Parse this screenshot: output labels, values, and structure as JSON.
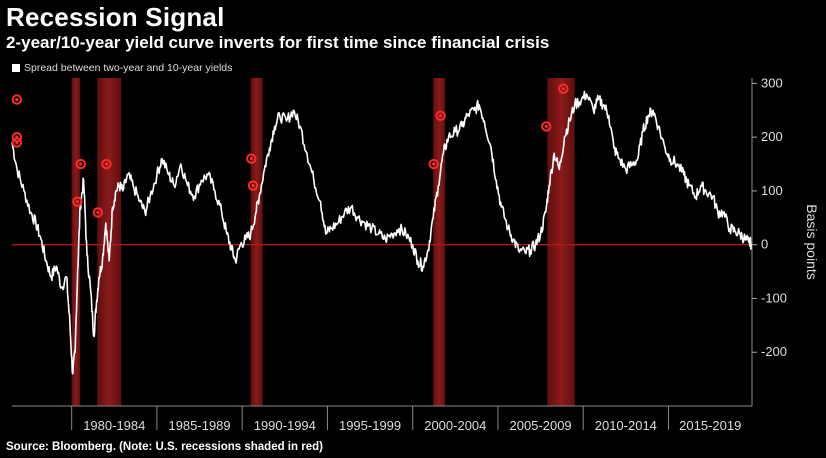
{
  "header": {
    "title": "Recession Signal",
    "subtitle": "2-year/10-year yield curve inverts for first time since financial crisis",
    "legend_label": "Spread between two-year and 10-year yields"
  },
  "footer": {
    "source": "Source: Bloomberg. (Note: U.S. recessions shaded in red)"
  },
  "colors": {
    "background": "#000000",
    "line": "#ffffff",
    "recession": "#8b1a1a",
    "zero_line": "#b01818",
    "marker": "#ff2a2a"
  },
  "chart_data": {
    "type": "line",
    "title": "Recession Signal",
    "subtitle": "2-year/10-year yield curve inverts for first time since financial crisis",
    "series_name": "Spread between two-year and 10-year yields",
    "xlabel": "",
    "ylabel": "Basis points",
    "y_axis_side": "right",
    "xlim": [
      1976.5,
      2019.9
    ],
    "ylim": [
      -300,
      310
    ],
    "yticks": [
      300,
      200,
      100,
      0,
      -100,
      -200
    ],
    "ytick_labels": [
      "300",
      "200",
      "100",
      "0",
      "-100",
      "-200"
    ],
    "x_categories": [
      "1980-1984",
      "1985-1989",
      "1990-1994",
      "1995-1999",
      "2000-2004",
      "2005-2009",
      "2010-2014",
      "2015-2019"
    ],
    "x_category_ranges": [
      [
        1980,
        1985
      ],
      [
        1985,
        1990
      ],
      [
        1990,
        1995
      ],
      [
        1995,
        2000
      ],
      [
        2000,
        2005
      ],
      [
        2005,
        2010
      ],
      [
        2010,
        2015
      ],
      [
        2015,
        2020
      ]
    ],
    "recessions": [
      [
        1980.0,
        1980.5
      ],
      [
        1981.5,
        1982.9
      ],
      [
        1990.5,
        1991.2
      ],
      [
        2001.2,
        2001.9
      ],
      [
        2007.9,
        2009.5
      ]
    ],
    "points": [
      [
        1976.5,
        190
      ],
      [
        1976.8,
        140
      ],
      [
        1977.2,
        100
      ],
      [
        1977.6,
        60
      ],
      [
        1977.9,
        40
      ],
      [
        1978.2,
        10
      ],
      [
        1978.5,
        -30
      ],
      [
        1978.8,
        -60
      ],
      [
        1979.1,
        -40
      ],
      [
        1979.4,
        -80
      ],
      [
        1979.7,
        -60
      ],
      [
        1979.9,
        -150
      ],
      [
        1980.05,
        -240
      ],
      [
        1980.2,
        -200
      ],
      [
        1980.35,
        -50
      ],
      [
        1980.5,
        70
      ],
      [
        1980.7,
        120
      ],
      [
        1980.9,
        -20
      ],
      [
        1981.1,
        -80
      ],
      [
        1981.3,
        -170
      ],
      [
        1981.45,
        -110
      ],
      [
        1981.6,
        -60
      ],
      [
        1981.8,
        -30
      ],
      [
        1982.0,
        40
      ],
      [
        1982.2,
        -30
      ],
      [
        1982.4,
        70
      ],
      [
        1982.6,
        100
      ],
      [
        1982.8,
        110
      ],
      [
        1983.0,
        100
      ],
      [
        1983.3,
        130
      ],
      [
        1983.6,
        110
      ],
      [
        1984.0,
        80
      ],
      [
        1984.3,
        60
      ],
      [
        1984.6,
        90
      ],
      [
        1985.0,
        130
      ],
      [
        1985.3,
        160
      ],
      [
        1985.7,
        130
      ],
      [
        1986.0,
        110
      ],
      [
        1986.4,
        150
      ],
      [
        1986.8,
        110
      ],
      [
        1987.2,
        90
      ],
      [
        1987.6,
        120
      ],
      [
        1988.0,
        130
      ],
      [
        1988.4,
        100
      ],
      [
        1988.8,
        60
      ],
      [
        1989.1,
        20
      ],
      [
        1989.4,
        -10
      ],
      [
        1989.6,
        -30
      ],
      [
        1989.9,
        0
      ],
      [
        1990.2,
        10
      ],
      [
        1990.5,
        20
      ],
      [
        1990.8,
        60
      ],
      [
        1991.0,
        90
      ],
      [
        1991.3,
        140
      ],
      [
        1991.6,
        180
      ],
      [
        1991.9,
        220
      ],
      [
        1992.2,
        240
      ],
      [
        1992.6,
        230
      ],
      [
        1993.0,
        250
      ],
      [
        1993.4,
        220
      ],
      [
        1993.8,
        170
      ],
      [
        1994.2,
        120
      ],
      [
        1994.6,
        80
      ],
      [
        1994.9,
        20
      ],
      [
        1995.2,
        30
      ],
      [
        1995.6,
        40
      ],
      [
        1996.0,
        60
      ],
      [
        1996.4,
        70
      ],
      [
        1996.8,
        50
      ],
      [
        1997.2,
        40
      ],
      [
        1997.6,
        30
      ],
      [
        1998.0,
        20
      ],
      [
        1998.4,
        10
      ],
      [
        1998.8,
        20
      ],
      [
        1999.2,
        30
      ],
      [
        1999.6,
        20
      ],
      [
        2000.0,
        0
      ],
      [
        2000.3,
        -30
      ],
      [
        2000.6,
        -40
      ],
      [
        2000.9,
        -10
      ],
      [
        2001.2,
        50
      ],
      [
        2001.5,
        110
      ],
      [
        2001.8,
        170
      ],
      [
        2002.1,
        200
      ],
      [
        2002.5,
        210
      ],
      [
        2002.9,
        220
      ],
      [
        2003.2,
        240
      ],
      [
        2003.6,
        250
      ],
      [
        2003.9,
        260
      ],
      [
        2004.2,
        230
      ],
      [
        2004.6,
        180
      ],
      [
        2004.9,
        120
      ],
      [
        2005.2,
        70
      ],
      [
        2005.6,
        30
      ],
      [
        2005.9,
        10
      ],
      [
        2006.2,
        -10
      ],
      [
        2006.6,
        -15
      ],
      [
        2006.9,
        -10
      ],
      [
        2007.2,
        0
      ],
      [
        2007.5,
        20
      ],
      [
        2007.8,
        60
      ],
      [
        2008.0,
        110
      ],
      [
        2008.3,
        170
      ],
      [
        2008.6,
        140
      ],
      [
        2008.9,
        200
      ],
      [
        2009.2,
        230
      ],
      [
        2009.5,
        260
      ],
      [
        2009.9,
        270
      ],
      [
        2010.2,
        280
      ],
      [
        2010.6,
        250
      ],
      [
        2010.9,
        270
      ],
      [
        2011.2,
        260
      ],
      [
        2011.5,
        240
      ],
      [
        2011.8,
        180
      ],
      [
        2012.1,
        160
      ],
      [
        2012.5,
        140
      ],
      [
        2012.9,
        150
      ],
      [
        2013.2,
        160
      ],
      [
        2013.5,
        210
      ],
      [
        2013.8,
        240
      ],
      [
        2014.1,
        250
      ],
      [
        2014.4,
        220
      ],
      [
        2014.8,
        180
      ],
      [
        2015.1,
        160
      ],
      [
        2015.5,
        150
      ],
      [
        2015.9,
        130
      ],
      [
        2016.2,
        110
      ],
      [
        2016.6,
        90
      ],
      [
        2016.9,
        110
      ],
      [
        2017.2,
        100
      ],
      [
        2017.6,
        90
      ],
      [
        2017.9,
        60
      ],
      [
        2018.2,
        60
      ],
      [
        2018.6,
        30
      ],
      [
        2018.9,
        25
      ],
      [
        2019.2,
        20
      ],
      [
        2019.5,
        10
      ],
      [
        2019.7,
        5
      ],
      [
        2019.85,
        2
      ]
    ],
    "inversion_markers": [
      [
        1976.55,
        270
      ],
      [
        1976.55,
        190
      ],
      [
        1976.55,
        200
      ],
      [
        1980.3,
        150
      ],
      [
        1980.1,
        80
      ],
      [
        1981.3,
        60
      ],
      [
        1981.8,
        150
      ],
      [
        1990.3,
        160
      ],
      [
        1990.4,
        110
      ],
      [
        2001.0,
        150
      ],
      [
        2001.4,
        240
      ],
      [
        2007.6,
        220
      ],
      [
        2008.6,
        290
      ]
    ]
  }
}
